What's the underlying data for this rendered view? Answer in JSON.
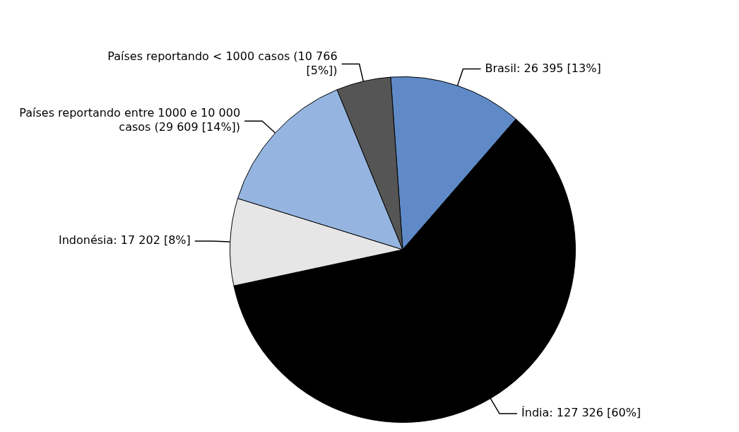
{
  "chart_data": {
    "type": "pie",
    "categories": [
      "Brasil: 26 395 [13%]",
      "Índia: 127 326 [60%]",
      "Indonésia: 17 202 [8%]",
      "Países reportando entre 1000 e 10 000 casos (29 609 [14%])",
      "Países reportando < 1000 casos (10 766 [5%])"
    ],
    "values": [
      26395,
      127326,
      17202,
      29609,
      10766
    ],
    "colors": [
      "#5f8ac7",
      "#000000",
      "#e6e6e6",
      "#95b5e0",
      "#555555"
    ],
    "legend": false
  }
}
